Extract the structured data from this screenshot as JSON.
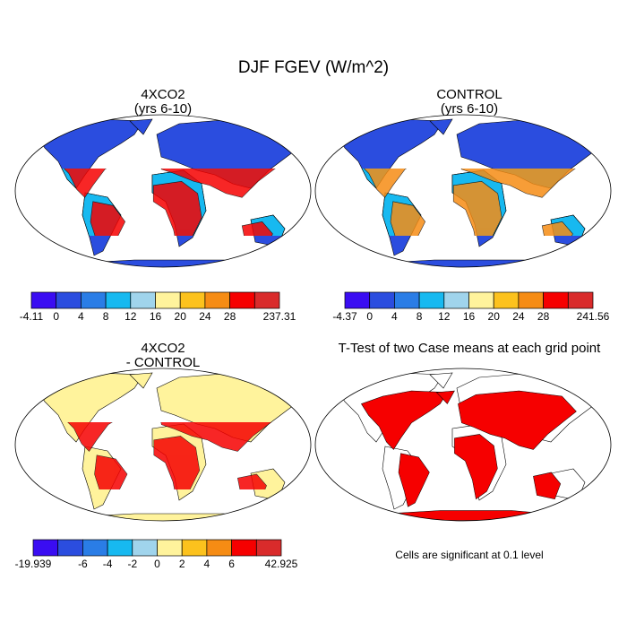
{
  "title": "DJF FGEV (W/m^2)",
  "panels": [
    {
      "title": "4XCO2",
      "subtitle": "(yrs 6-10)",
      "colorbar": {
        "colors": [
          "#3a0df2",
          "#2b4ddf",
          "#2a7de6",
          "#17b9f0",
          "#a0d4ec",
          "#fff39c",
          "#fcc21d",
          "#f68c14",
          "#f60000",
          "#d92b2b"
        ],
        "labels": [
          "-4.11",
          "0",
          "4",
          "8",
          "12",
          "16",
          "20",
          "24",
          "28",
          null,
          "237.31"
        ]
      }
    },
    {
      "title": "CONTROL",
      "subtitle": "(yrs 6-10)",
      "colorbar": {
        "colors": [
          "#3a0df2",
          "#2b4ddf",
          "#2a7de6",
          "#17b9f0",
          "#a0d4ec",
          "#fff39c",
          "#fcc21d",
          "#f68c14",
          "#f60000",
          "#d92b2b"
        ],
        "labels": [
          "-4.37",
          "0",
          "4",
          "8",
          "12",
          "16",
          "20",
          "24",
          "28",
          null,
          "241.56"
        ]
      }
    },
    {
      "title": "4XCO2",
      "subtitle": "- CONTROL",
      "colorbar": {
        "colors": [
          "#3a0df2",
          "#2b4ddf",
          "#2a7de6",
          "#17b9f0",
          "#a0d4ec",
          "#fff39c",
          "#fcc21d",
          "#f68c14",
          "#f60000",
          "#d92b2b"
        ],
        "labels": [
          "-19.939",
          null,
          "-6",
          "-4",
          "-2",
          "0",
          "2",
          "4",
          "6",
          null,
          "42.925"
        ]
      }
    },
    {
      "title": "T-Test of two Case means at each grid point",
      "note": "Cells are significant at 0.1 level"
    }
  ]
}
